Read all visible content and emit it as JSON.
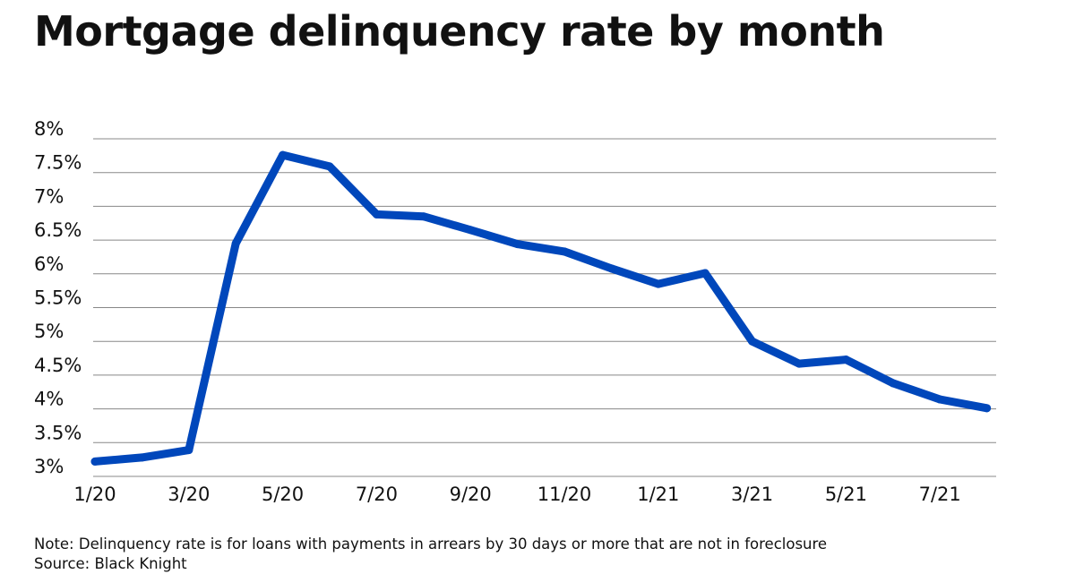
{
  "title": "Mortgage delinquency rate by month",
  "note": "Note: Delinquency rate is for loans with payments in arrears by 30 days or more that are not in foreclosure",
  "source": "Source: Black Knight",
  "colors": {
    "line": "#0047BB",
    "grid": "#888888",
    "text": "#111111"
  },
  "chart_data": {
    "type": "line",
    "title": "Mortgage delinquency rate by month",
    "xlabel": "",
    "ylabel": "",
    "grid": true,
    "legend": "none",
    "ylim": [
      3,
      8
    ],
    "y_ticks": [
      3,
      3.5,
      4,
      4.5,
      5,
      5.5,
      6,
      6.5,
      7,
      7.5,
      8
    ],
    "y_tick_labels": [
      "3%",
      "3.5%",
      "4%",
      "4.5%",
      "5%",
      "5.5%",
      "6%",
      "6.5%",
      "7%",
      "7.5%",
      "8%"
    ],
    "x_tick_labels": [
      "1/20",
      "3/20",
      "5/20",
      "7/20",
      "9/20",
      "11/20",
      "1/21",
      "3/21",
      "5/21",
      "7/21"
    ],
    "categories": [
      "1/20",
      "2/20",
      "3/20",
      "4/20",
      "5/20",
      "6/20",
      "7/20",
      "8/20",
      "9/20",
      "10/20",
      "11/20",
      "12/20",
      "1/21",
      "2/21",
      "3/21",
      "4/21",
      "5/21",
      "6/21",
      "7/21",
      "8/21"
    ],
    "series": [
      {
        "values": [
          3.22,
          3.28,
          3.39,
          6.45,
          7.76,
          7.59,
          6.88,
          6.85,
          6.65,
          6.44,
          6.33,
          6.08,
          5.85,
          6.01,
          5.0,
          4.67,
          4.73,
          4.38,
          4.14,
          4.01
        ]
      }
    ]
  }
}
